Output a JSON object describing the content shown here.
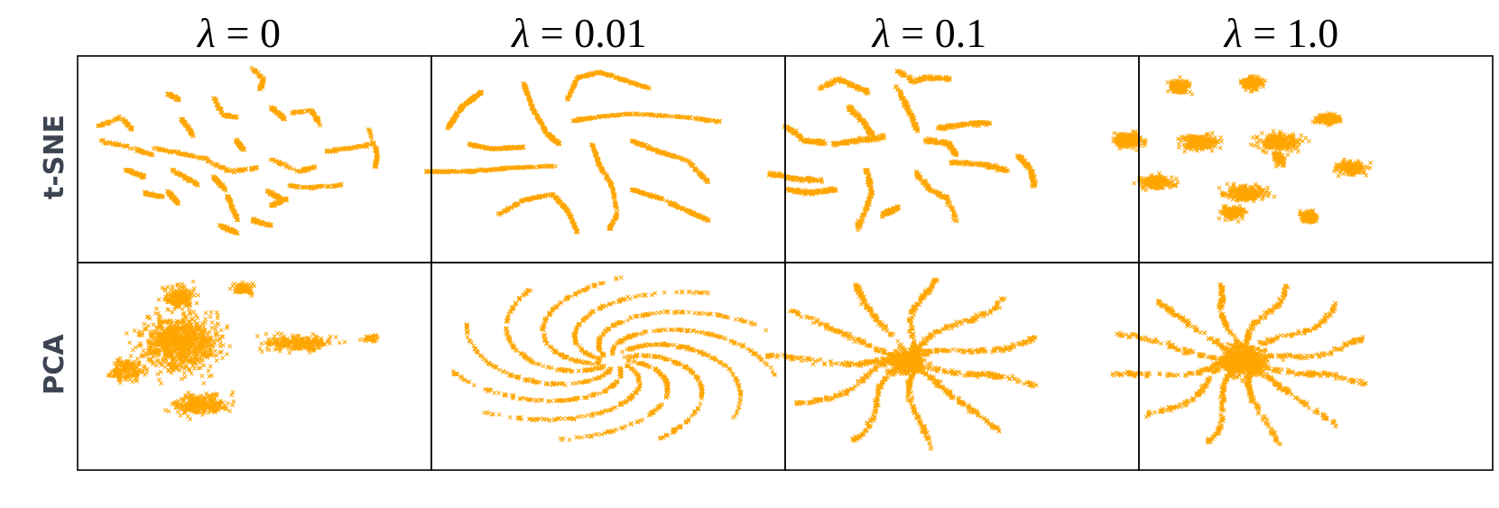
{
  "figure": {
    "columns": [
      {
        "symbol": "λ",
        "value": "0"
      },
      {
        "symbol": "λ",
        "value": "0.01"
      },
      {
        "symbol": "λ",
        "value": "0.1"
      },
      {
        "symbol": "λ",
        "value": "1.0"
      }
    ],
    "rows": [
      "t-SNE",
      "PCA"
    ],
    "marker": "x-marker",
    "marker_color": "#FFA500",
    "frame_color": "#000000",
    "row_label_color": "#3d4451"
  },
  "chart_data": [
    {
      "type": "scatter",
      "row": "t-SNE",
      "column": "λ = 0",
      "pattern": "many short compact segments scattered across the plane",
      "grid": false,
      "axes": false
    },
    {
      "type": "scatter",
      "row": "t-SNE",
      "column": "λ = 0.01",
      "pattern": "about ten long thin curved strands",
      "grid": false,
      "axes": false
    },
    {
      "type": "scatter",
      "row": "t-SNE",
      "column": "λ = 0.1",
      "pattern": "medium-length thicker strands arranged radially",
      "grid": false,
      "axes": false
    },
    {
      "type": "scatter",
      "row": "t-SNE",
      "column": "λ = 1.0",
      "pattern": "dense diffuse blobs",
      "grid": false,
      "axes": false
    },
    {
      "type": "scatter",
      "row": "PCA",
      "column": "λ = 0",
      "pattern": "one dense irregular cloud elongated horizontally",
      "grid": false,
      "axes": false
    },
    {
      "type": "scatter",
      "row": "PCA",
      "column": "λ = 0.01",
      "pattern": "swirling spiral arms from a common centre",
      "grid": false,
      "axes": false
    },
    {
      "type": "scatter",
      "row": "PCA",
      "column": "λ = 0.1",
      "pattern": "star-shaped with radial arms",
      "grid": false,
      "axes": false
    },
    {
      "type": "scatter",
      "row": "PCA",
      "column": "λ = 1.0",
      "pattern": "star-shaped, denser core",
      "grid": false,
      "axes": false
    }
  ]
}
